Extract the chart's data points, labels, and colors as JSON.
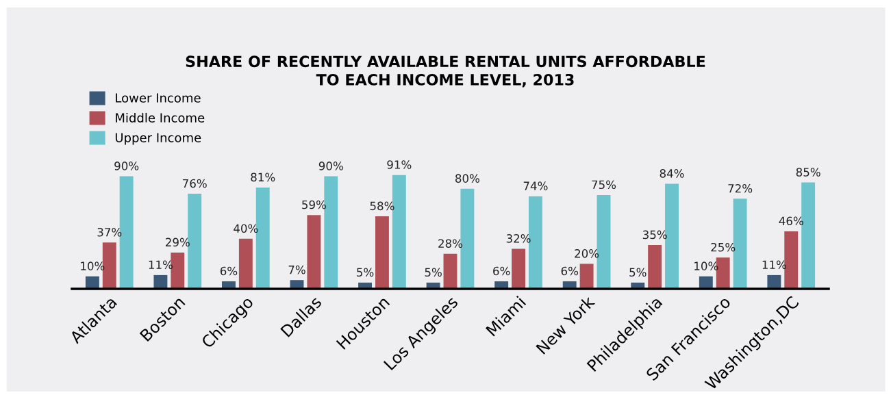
{
  "chart_data": {
    "type": "bar",
    "title": "SHARE OF RECENTLY AVAILABLE RENTAL UNITS AFFORDABLE\nTO EACH INCOME LEVEL, 2013",
    "categories": [
      "Atlanta",
      "Boston",
      "Chicago",
      "Dallas",
      "Houston",
      "Los Angeles",
      "Miami",
      "New York",
      "Philadelphia",
      "San Francisco",
      "Washington,DC"
    ],
    "series": [
      {
        "name": "Lower Income",
        "color": "#3a5878",
        "values": [
          10,
          11,
          6,
          7,
          5,
          5,
          6,
          6,
          5,
          10,
          11
        ],
        "value_labels": [
          "10%",
          "11%",
          "6%",
          "7%",
          "5%",
          "5%",
          "6%",
          "6%",
          "5%",
          "10%",
          "11%"
        ]
      },
      {
        "name": "Middle Income",
        "color": "#b05056",
        "values": [
          37,
          29,
          40,
          59,
          58,
          28,
          32,
          20,
          35,
          25,
          46
        ],
        "value_labels": [
          "37%",
          "29%",
          "40%",
          "59%",
          "58%",
          "28%",
          "32%",
          "20%",
          "35%",
          "25%",
          "46%"
        ]
      },
      {
        "name": "Upper Income",
        "color": "#6bc3cd",
        "values": [
          90,
          76,
          81,
          90,
          91,
          80,
          74,
          75,
          84,
          72,
          85
        ],
        "value_labels": [
          "90%",
          "76%",
          "81%",
          "90%",
          "91%",
          "80%",
          "74%",
          "75%",
          "84%",
          "72%",
          "85%"
        ]
      }
    ],
    "legend": "top left",
    "grid": false
  }
}
